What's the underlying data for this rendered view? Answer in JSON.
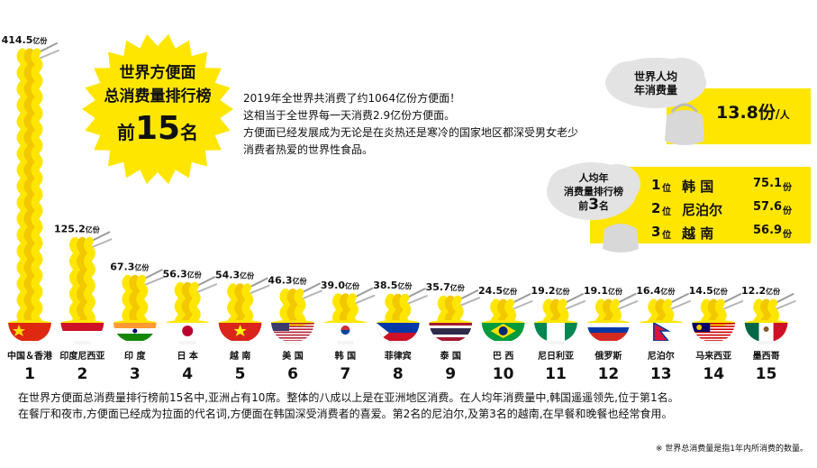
{
  "badge": {
    "line1": "世界方便面",
    "line2": "总消费量排行榜",
    "pre": "前",
    "num": "15",
    "post": "名"
  },
  "description": [
    "2019年全世界共消费了约1064亿份方便面！",
    "这相当于全世界每一天消费2.9亿份方便面。",
    "方便面已经发展成为无论是在炎热还是寒冷的国家地区都深受男女老少",
    "消费者热爱的世界性食品。"
  ],
  "per_capita": {
    "label_1": "世界人均",
    "label_2": "年消费量",
    "value": "13.8份",
    "unit": "人"
  },
  "per_capita_ranking": {
    "label_1": "人均年",
    "label_2": "消费量排行榜",
    "label_pre": "前",
    "label_num": "3",
    "label_post": "名",
    "rows": [
      {
        "rank": "1",
        "rank_unit": "位",
        "country": "韩 国",
        "value": "75.1",
        "unit": "份"
      },
      {
        "rank": "2",
        "rank_unit": "位",
        "country": "尼泊尔",
        "value": "57.6",
        "unit": "份"
      },
      {
        "rank": "3",
        "rank_unit": "位",
        "country": "越 南",
        "value": "56.9",
        "unit": "份"
      }
    ]
  },
  "chart_data": {
    "type": "bar",
    "categories": [
      "中国＆香港",
      "印度尼西亚",
      "印 度",
      "日 本",
      "越 南",
      "美 国",
      "韩 国",
      "菲律宾",
      "泰 国",
      "巴 西",
      "尼日利亚",
      "俄罗斯",
      "尼泊尔",
      "马来西亚",
      "墨西哥"
    ],
    "ranks": [
      "1",
      "2",
      "3",
      "4",
      "5",
      "6",
      "7",
      "8",
      "9",
      "10",
      "11",
      "12",
      "13",
      "14",
      "15"
    ],
    "values": [
      414.5,
      125.2,
      67.3,
      56.3,
      54.3,
      46.3,
      39.0,
      38.5,
      35.7,
      24.5,
      19.2,
      19.1,
      16.4,
      14.5,
      12.2
    ],
    "value_labels": [
      "414.5",
      "125.2",
      "67.3",
      "56.3",
      "54.3",
      "46.3",
      "39.0",
      "38.5",
      "35.7",
      "24.5",
      "19.2",
      "19.1",
      "16.4",
      "14.5",
      "12.2"
    ],
    "unit": "亿份",
    "flags": [
      "china",
      "indonesia",
      "india",
      "japan",
      "vietnam",
      "usa",
      "korea",
      "philippines",
      "thailand",
      "brazil",
      "nigeria",
      "russia",
      "nepal",
      "malaysia",
      "mexico"
    ],
    "colors": {
      "noodle": "#ffe600",
      "noodle_edge": "#f2c800",
      "bowl_base": "#f5f5f5"
    }
  },
  "footer": [
    "在世界方便面总消费量排行榜前15名中,亚洲占有10席。整体的八成以上是在亚洲地区消费。在人均年消费量中,韩国遥遥领先,位于第1名。",
    "在餐厅和夜市,方便面已经成为拉面的代名词,方便面在韩国深受消费者的喜爱。第2名的尼泊尔,及第3名的越南,在早餐和晚餐也经常食用。"
  ],
  "note": "※ 世界总消费量是指1年内所消费的数量。"
}
